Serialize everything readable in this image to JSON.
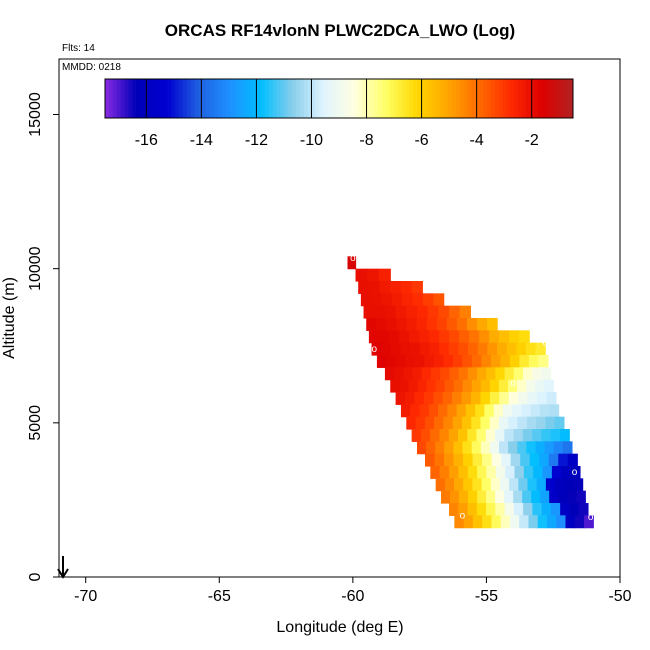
{
  "chart_data": {
    "type": "heatmap",
    "title": "ORCAS RF14vlonN PLWC2DCA_LWO (Log)",
    "flights_label": "Flts: 14",
    "date_label": "MMDD: 0218",
    "xlabel": "Longitude (deg E)",
    "ylabel": "Altitude (m)",
    "xlim": [
      -71,
      -50
    ],
    "ylim": [
      0,
      16800
    ],
    "xticks": [
      -70,
      -65,
      -60,
      -55,
      -50
    ],
    "yticks": [
      0,
      5000,
      10000,
      15000
    ],
    "xtick_labels": [
      "-70",
      "-65",
      "-60",
      "-55",
      "-50"
    ],
    "ytick_labels": [
      "0",
      "5000",
      "10000",
      "15000"
    ],
    "colorbar": {
      "range": [
        -17.5,
        -0.5
      ],
      "ticks": [
        -16,
        -14,
        -12,
        -10,
        -8,
        -6,
        -4,
        -2
      ],
      "tick_labels": [
        "-16",
        "-14",
        "-12",
        "-10",
        "-8",
        "-6",
        "-4",
        "-2"
      ],
      "colors": [
        "#8a2be2",
        "#0000b8",
        "#0000d0",
        "#2060e0",
        "#1e90ff",
        "#00bfff",
        "#87ceeb",
        "#e0f4ff",
        "#ffffe0",
        "#ffff66",
        "#ffd700",
        "#ffa500",
        "#ff6a00",
        "#ff2a00",
        "#dd0000",
        "#b22222"
      ]
    },
    "cell_size": {
      "lon": 0.35,
      "alt": 400
    },
    "rows": [
      {
        "alt": 10200,
        "lon_start": -60.2,
        "lon_end": -59.9,
        "values": [
          -1.5
        ]
      },
      {
        "alt": 9800,
        "lon_start": -59.9,
        "lon_end": -58.6,
        "values": [
          -2.0,
          -2.2,
          -2.5
        ]
      },
      {
        "alt": 9400,
        "lon_start": -59.8,
        "lon_end": -57.4,
        "values": [
          -2.0,
          -2.1,
          -2.3,
          -2.5,
          -2.7,
          -3.0
        ]
      },
      {
        "alt": 9000,
        "lon_start": -59.7,
        "lon_end": -56.6,
        "values": [
          -2.0,
          -2.1,
          -2.2,
          -2.4,
          -2.6,
          -2.8,
          -3.1,
          -3.5
        ]
      },
      {
        "alt": 8600,
        "lon_start": -59.6,
        "lon_end": -55.6,
        "values": [
          -2.0,
          -2.0,
          -2.1,
          -2.3,
          -2.5,
          -2.7,
          -3.0,
          -3.3,
          -3.8,
          -4.3
        ]
      },
      {
        "alt": 8200,
        "lon_start": -59.5,
        "lon_end": -54.6,
        "values": [
          -1.8,
          -1.9,
          -2.0,
          -2.2,
          -2.4,
          -2.6,
          -2.9,
          -3.2,
          -3.6,
          -4.0,
          -4.6,
          -5.1,
          -5.6
        ]
      },
      {
        "alt": 7800,
        "lon_start": -59.4,
        "lon_end": -53.4,
        "values": [
          -1.8,
          -1.8,
          -1.9,
          -2.1,
          -2.3,
          -2.5,
          -2.7,
          -3.0,
          -3.3,
          -3.7,
          -4.1,
          -4.6,
          -5.2,
          -5.6,
          -6.0,
          -6.3
        ]
      },
      {
        "alt": 7400,
        "lon_start": -59.3,
        "lon_end": -52.8,
        "values": [
          -1.7,
          -1.8,
          -1.9,
          -2.0,
          -2.1,
          -2.3,
          -2.5,
          -2.8,
          -3.1,
          -3.4,
          -3.8,
          -4.2,
          -4.7,
          -5.2,
          -5.6,
          -6.0,
          -6.4,
          -6.7
        ]
      },
      {
        "alt": 7000,
        "lon_start": -59.1,
        "lon_end": -52.7,
        "values": [
          -1.7,
          -1.8,
          -1.9,
          -2.0,
          -2.1,
          -2.3,
          -2.5,
          -2.8,
          -3.1,
          -3.5,
          -3.9,
          -4.4,
          -4.9,
          -5.4,
          -6.0,
          -6.7,
          -7.2,
          -7.6
        ]
      },
      {
        "alt": 6600,
        "lon_start": -58.8,
        "lon_end": -52.6,
        "values": [
          -1.9,
          -2.0,
          -2.2,
          -2.4,
          -2.7,
          -3.0,
          -3.3,
          -3.7,
          -4.1,
          -4.6,
          -5.1,
          -5.6,
          -6.2,
          -6.8,
          -7.4,
          -8.2,
          -8.7,
          -8.9
        ]
      },
      {
        "alt": 6200,
        "lon_start": -58.6,
        "lon_end": -52.5,
        "values": [
          -2.0,
          -2.1,
          -2.3,
          -2.6,
          -2.9,
          -3.2,
          -3.6,
          -4.0,
          -4.5,
          -5.0,
          -5.5,
          -6.1,
          -6.8,
          -7.5,
          -8.2,
          -8.8,
          -9.2,
          -9.5
        ]
      },
      {
        "alt": 5800,
        "lon_start": -58.4,
        "lon_end": -52.4,
        "values": [
          -2.2,
          -2.4,
          -2.7,
          -3.0,
          -3.4,
          -3.8,
          -4.3,
          -4.8,
          -5.4,
          -6.1,
          -6.9,
          -7.7,
          -8.4,
          -8.9,
          -9.3,
          -9.6,
          -9.8
        ]
      },
      {
        "alt": 5400,
        "lon_start": -58.2,
        "lon_end": -52.3,
        "values": [
          -2.4,
          -2.7,
          -3.0,
          -3.4,
          -3.9,
          -4.4,
          -5.0,
          -5.7,
          -6.4,
          -7.3,
          -8.2,
          -9.0,
          -9.4,
          -9.7,
          -9.9,
          -10.1,
          -10.2
        ]
      },
      {
        "alt": 5000,
        "lon_start": -58.0,
        "lon_end": -52.1,
        "values": [
          -2.7,
          -3.0,
          -3.4,
          -3.9,
          -4.4,
          -5.0,
          -5.7,
          -6.5,
          -7.3,
          -8.2,
          -9.2,
          -9.7,
          -10.0,
          -10.3,
          -10.5,
          -10.8,
          -11.0
        ]
      },
      {
        "alt": 4600,
        "lon_start": -57.8,
        "lon_end": -51.9,
        "values": [
          -3.0,
          -3.4,
          -3.9,
          -4.4,
          -5.0,
          -5.7,
          -6.6,
          -7.4,
          -8.3,
          -9.3,
          -10.0,
          -10.4,
          -10.8,
          -11.1,
          -11.4,
          -11.6,
          -11.9
        ]
      },
      {
        "alt": 4200,
        "lon_start": -57.6,
        "lon_end": -51.8,
        "values": [
          -3.3,
          -3.8,
          -4.3,
          -4.9,
          -5.6,
          -6.4,
          -7.2,
          -8.1,
          -9.0,
          -10.0,
          -10.7,
          -11.2,
          -11.7,
          -12.2,
          -12.7,
          -13.2,
          -13.6
        ]
      },
      {
        "alt": 3800,
        "lon_start": -57.3,
        "lon_end": -51.6,
        "values": [
          -3.6,
          -4.1,
          -4.7,
          -5.3,
          -6.0,
          -6.8,
          -7.6,
          -8.5,
          -9.4,
          -10.4,
          -11.2,
          -11.8,
          -12.4,
          -13.5,
          -15.0,
          -15.8
        ]
      },
      {
        "alt": 3400,
        "lon_start": -57.1,
        "lon_end": -51.5,
        "values": [
          -3.8,
          -4.3,
          -4.9,
          -5.6,
          -6.3,
          -7.1,
          -7.9,
          -8.8,
          -9.7,
          -10.6,
          -11.4,
          -12.0,
          -12.8,
          -15.2,
          -16.0,
          -16.2
        ]
      },
      {
        "alt": 3000,
        "lon_start": -56.9,
        "lon_end": -51.4,
        "values": [
          -4.0,
          -4.5,
          -5.1,
          -5.8,
          -6.5,
          -7.3,
          -8.2,
          -9.1,
          -10.0,
          -10.9,
          -11.6,
          -12.3,
          -15.4,
          -16.1,
          -16.3,
          -16.4
        ]
      },
      {
        "alt": 2600,
        "lon_start": -56.7,
        "lon_end": -51.3,
        "values": [
          -4.2,
          -4.7,
          -5.3,
          -6.0,
          -6.8,
          -7.6,
          -8.5,
          -9.4,
          -10.3,
          -11.2,
          -11.9,
          -12.5,
          -15.6,
          -16.2,
          -16.4,
          -16.5
        ]
      },
      {
        "alt": 2200,
        "lon_start": -56.4,
        "lon_end": -51.2,
        "values": [
          -4.4,
          -4.9,
          -5.6,
          -6.3,
          -7.1,
          -7.9,
          -8.8,
          -9.7,
          -10.6,
          -11.5,
          -12.2,
          -12.8,
          -15.8,
          -16.3,
          -16.5
        ]
      },
      {
        "alt": 1800,
        "lon_start": -56.2,
        "lon_end": -51.0,
        "values": [
          -4.5,
          -5.0,
          -5.7,
          -6.4,
          -7.2,
          -8.1,
          -9.0,
          -9.9,
          -10.8,
          -11.7,
          -12.4,
          -13.0,
          -16.0,
          -16.5,
          -17.0
        ]
      }
    ],
    "markers": [
      {
        "lon": -60.0,
        "alt": 10350,
        "label": "o"
      },
      {
        "lon": -59.2,
        "alt": 7400,
        "label": "o"
      },
      {
        "lon": -54.0,
        "alt": 6300,
        "label": "o"
      },
      {
        "lon": -52.8,
        "alt": 7600,
        "label": "o"
      },
      {
        "lon": -51.7,
        "alt": 3400,
        "label": "o"
      },
      {
        "lon": -55.9,
        "alt": 2000,
        "label": "o"
      },
      {
        "lon": -51.1,
        "alt": 1950,
        "label": "o"
      }
    ]
  }
}
